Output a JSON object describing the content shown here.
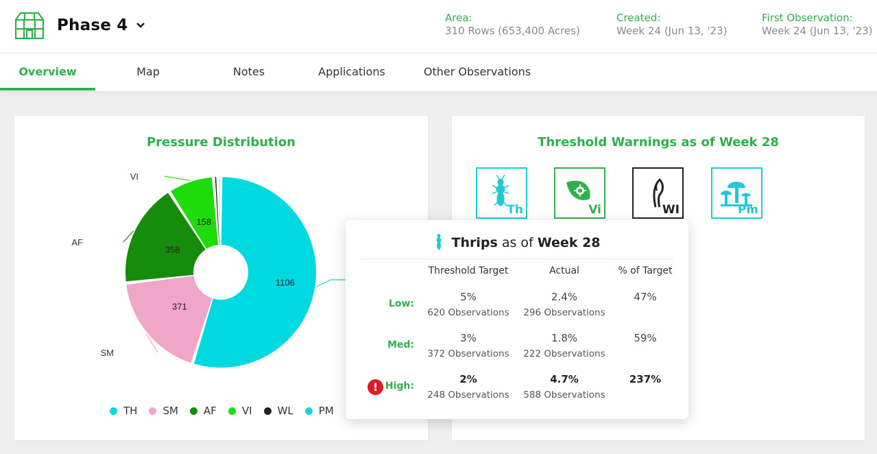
{
  "header": {
    "title": "Phase 4",
    "logo_icon": "greenhouse-icon",
    "area_label": "Area:",
    "area_value": "310 Rows (653,400 Acres)",
    "created_label": "Created:",
    "created_value": "Week 24 (Jun 13, '23)",
    "first_obs_label": "First Observation:",
    "first_obs_value": "Week 24 (Jun 13, '23)"
  },
  "tabs": [
    {
      "label": "Overview",
      "active": true
    },
    {
      "label": "Map"
    },
    {
      "label": "Notes"
    },
    {
      "label": "Applications"
    },
    {
      "label": "Other Observations"
    }
  ],
  "pressure": {
    "title": "Pressure Distribution"
  },
  "chart_data": {
    "type": "pie",
    "style": "donut",
    "title": "Pressure Distribution",
    "categories": [
      "TH",
      "SM",
      "AF",
      "VI",
      "WL",
      "PM"
    ],
    "values": [
      1106,
      371,
      358,
      158,
      15,
      10
    ],
    "data_labels": [
      "1106",
      "371",
      "358",
      "158",
      "",
      ""
    ],
    "colors": [
      "#00d9e0",
      "#f0a6c8",
      "#178c0c",
      "#1ddc0a",
      "#222222",
      "#1ad3dc"
    ],
    "legend_placement": "bottom"
  },
  "threshold": {
    "title": "Threshold Warnings as of Week 28",
    "icons": [
      {
        "abbr": "Th",
        "icon": "thrips-icon",
        "color": "#20c9d6"
      },
      {
        "abbr": "Vi",
        "icon": "virus-leaf-icon",
        "color": "#2fb04a"
      },
      {
        "abbr": "WI",
        "icon": "wilt-icon",
        "color": "#222222"
      },
      {
        "abbr": "Pm",
        "icon": "mushroom-icon",
        "color": "#20c9d6"
      }
    ]
  },
  "popup": {
    "pest": "Thrips",
    "as_of": "as of",
    "week": "Week 28",
    "col_target": "Threshold Target",
    "col_actual": "Actual",
    "col_pct": "% of Target",
    "rows": [
      {
        "label": "Low:",
        "target": "5%",
        "target_obs": "620 Observations",
        "actual": "2.4%",
        "actual_obs": "296 Observations",
        "pct": "47%"
      },
      {
        "label": "Med:",
        "target": "3%",
        "target_obs": "372 Observations",
        "actual": "1.8%",
        "actual_obs": "222 Observations",
        "pct": "59%"
      },
      {
        "label": "High:",
        "target": "2%",
        "target_obs": "248 Observations",
        "actual": "4.7%",
        "actual_obs": "588 Observations",
        "pct": "237%",
        "alert": "!"
      }
    ]
  }
}
